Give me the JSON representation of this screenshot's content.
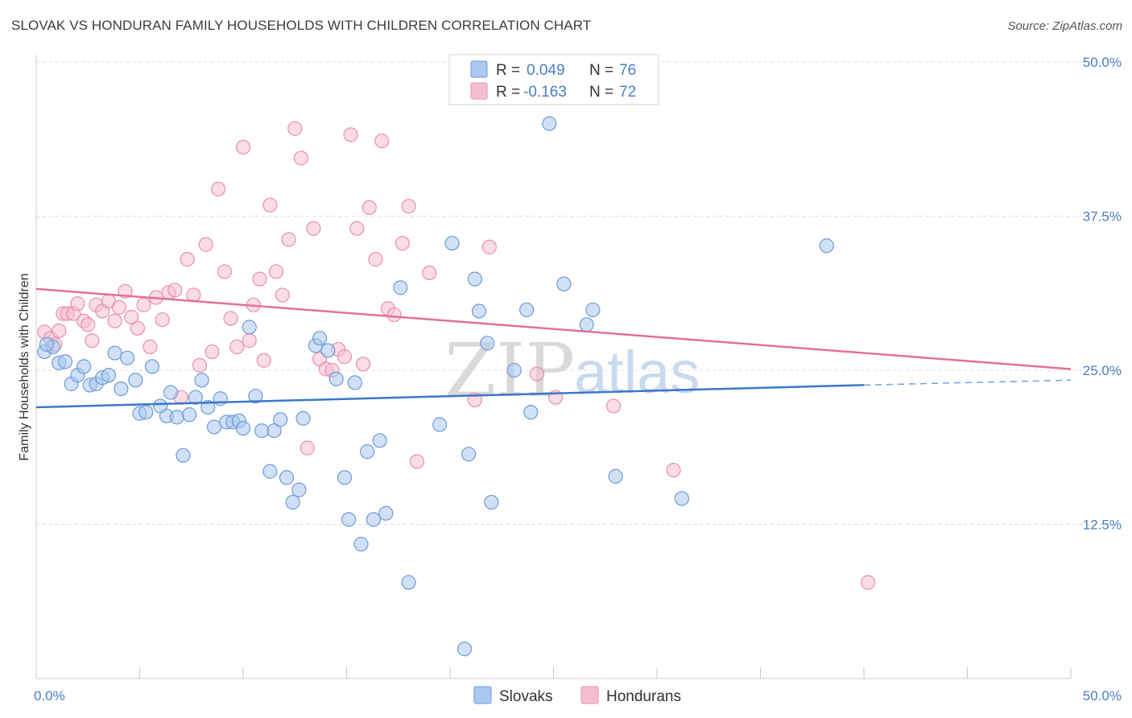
{
  "header": {
    "title": "SLOVAK VS HONDURAN FAMILY HOUSEHOLDS WITH CHILDREN CORRELATION CHART",
    "source": "Source: ZipAtlas.com"
  },
  "watermark": {
    "zip": "ZIP",
    "atlas": "atlas"
  },
  "legend_top": {
    "rows": [
      {
        "r_label": "R =",
        "r_value": "0.049",
        "n_label": "N =",
        "n_value": "76"
      },
      {
        "r_label": "R =",
        "r_value": "-0.163",
        "n_label": "N =",
        "n_value": "72"
      }
    ]
  },
  "legend_bottom": {
    "items": [
      "Slovaks",
      "Hondurans"
    ]
  },
  "colors": {
    "slovak_fill": "#aac8f0",
    "slovak_stroke": "#6f9ad6",
    "slovak_line": "#3a78c8",
    "honduran_fill": "#f6bfd0",
    "honduran_stroke": "#e98fae",
    "honduran_line": "#e2719a",
    "grid": "#dcdcdc",
    "tick_label": "#4a7cc7"
  },
  "chart_data": {
    "type": "scatter",
    "ylabel": "Family Households with Children",
    "xlim": [
      0,
      50
    ],
    "ylim": [
      0,
      50
    ],
    "x_tick_labels": [
      "0.0%",
      "50.0%"
    ],
    "y_ticks": [
      12.5,
      25.0,
      37.5,
      50.0
    ],
    "y_tick_labels": [
      "12.5%",
      "25.0%",
      "37.5%",
      "50.0%"
    ],
    "grid": true,
    "legend_placement": "top-center",
    "series": [
      {
        "name": "Slovaks",
        "points": [
          [
            0.4,
            26.5
          ],
          [
            0.8,
            26.9
          ],
          [
            1.1,
            25.6
          ],
          [
            1.4,
            25.7
          ],
          [
            1.7,
            23.9
          ],
          [
            2.0,
            24.6
          ],
          [
            2.3,
            25.3
          ],
          [
            2.6,
            23.8
          ],
          [
            2.9,
            23.9
          ],
          [
            3.2,
            24.4
          ],
          [
            3.5,
            24.6
          ],
          [
            3.8,
            26.4
          ],
          [
            4.1,
            23.5
          ],
          [
            4.4,
            26.0
          ],
          [
            4.8,
            24.2
          ],
          [
            5.0,
            21.5
          ],
          [
            5.3,
            21.6
          ],
          [
            5.6,
            25.3
          ],
          [
            6.0,
            22.1
          ],
          [
            6.3,
            21.3
          ],
          [
            6.5,
            23.2
          ],
          [
            6.8,
            21.2
          ],
          [
            7.1,
            18.1
          ],
          [
            7.4,
            21.4
          ],
          [
            7.7,
            22.8
          ],
          [
            8.0,
            24.2
          ],
          [
            8.3,
            22.0
          ],
          [
            8.6,
            20.4
          ],
          [
            8.9,
            22.7
          ],
          [
            9.2,
            20.8
          ],
          [
            9.5,
            20.8
          ],
          [
            9.8,
            20.9
          ],
          [
            10.0,
            20.3
          ],
          [
            10.3,
            28.5
          ],
          [
            10.6,
            22.9
          ],
          [
            10.9,
            20.1
          ],
          [
            11.3,
            16.8
          ],
          [
            11.5,
            20.1
          ],
          [
            11.8,
            21.0
          ],
          [
            12.1,
            16.3
          ],
          [
            12.4,
            14.3
          ],
          [
            12.7,
            15.3
          ],
          [
            12.9,
            21.1
          ],
          [
            13.5,
            27.0
          ],
          [
            13.7,
            27.6
          ],
          [
            14.1,
            26.6
          ],
          [
            14.5,
            24.3
          ],
          [
            14.9,
            16.3
          ],
          [
            15.1,
            12.9
          ],
          [
            15.4,
            24.0
          ],
          [
            15.7,
            10.9
          ],
          [
            16.0,
            18.4
          ],
          [
            16.3,
            12.9
          ],
          [
            16.6,
            19.3
          ],
          [
            16.9,
            13.4
          ],
          [
            17.6,
            31.7
          ],
          [
            18.0,
            7.8
          ],
          [
            19.5,
            20.6
          ],
          [
            20.1,
            35.3
          ],
          [
            20.7,
            2.4
          ],
          [
            20.9,
            18.2
          ],
          [
            21.2,
            32.4
          ],
          [
            21.4,
            29.8
          ],
          [
            21.8,
            27.2
          ],
          [
            22.0,
            14.3
          ],
          [
            23.1,
            25.0
          ],
          [
            23.7,
            29.9
          ],
          [
            23.9,
            21.6
          ],
          [
            24.8,
            45.0
          ],
          [
            25.5,
            32.0
          ],
          [
            26.6,
            28.7
          ],
          [
            26.9,
            29.9
          ],
          [
            28.0,
            16.4
          ],
          [
            31.2,
            14.6
          ],
          [
            38.2,
            35.1
          ],
          [
            0.5,
            27.1
          ]
        ],
        "trend": {
          "x": [
            0,
            40
          ],
          "y": [
            22.0,
            23.8
          ],
          "dashed_to": [
            50,
            24.2
          ]
        }
      },
      {
        "name": "Hondurans",
        "points": [
          [
            0.4,
            28.1
          ],
          [
            0.7,
            27.6
          ],
          [
            0.9,
            27.1
          ],
          [
            1.1,
            28.2
          ],
          [
            1.3,
            29.6
          ],
          [
            1.5,
            29.6
          ],
          [
            1.8,
            29.6
          ],
          [
            2.0,
            30.4
          ],
          [
            2.3,
            29.0
          ],
          [
            2.5,
            28.7
          ],
          [
            2.7,
            27.4
          ],
          [
            2.9,
            30.3
          ],
          [
            3.2,
            29.8
          ],
          [
            3.5,
            30.6
          ],
          [
            3.8,
            29.0
          ],
          [
            4.0,
            30.1
          ],
          [
            4.3,
            31.4
          ],
          [
            4.6,
            29.3
          ],
          [
            4.9,
            28.4
          ],
          [
            5.2,
            30.3
          ],
          [
            5.5,
            26.9
          ],
          [
            5.8,
            30.9
          ],
          [
            6.1,
            29.1
          ],
          [
            6.4,
            31.3
          ],
          [
            6.7,
            31.5
          ],
          [
            7.0,
            22.8
          ],
          [
            7.3,
            34.0
          ],
          [
            7.6,
            31.1
          ],
          [
            7.9,
            25.4
          ],
          [
            8.2,
            35.2
          ],
          [
            8.5,
            26.5
          ],
          [
            8.8,
            39.7
          ],
          [
            9.1,
            33.0
          ],
          [
            9.4,
            29.2
          ],
          [
            9.7,
            26.9
          ],
          [
            10.0,
            43.1
          ],
          [
            10.3,
            27.4
          ],
          [
            10.5,
            30.3
          ],
          [
            10.8,
            32.4
          ],
          [
            11.0,
            25.8
          ],
          [
            11.3,
            38.4
          ],
          [
            11.6,
            33.0
          ],
          [
            11.9,
            31.1
          ],
          [
            12.2,
            35.6
          ],
          [
            12.5,
            44.6
          ],
          [
            12.8,
            42.2
          ],
          [
            13.1,
            18.7
          ],
          [
            13.4,
            36.5
          ],
          [
            13.7,
            25.9
          ],
          [
            14.0,
            25.1
          ],
          [
            14.3,
            25.0
          ],
          [
            14.6,
            26.7
          ],
          [
            14.9,
            26.1
          ],
          [
            15.2,
            44.1
          ],
          [
            15.5,
            36.5
          ],
          [
            15.8,
            25.5
          ],
          [
            16.1,
            38.2
          ],
          [
            16.4,
            34.0
          ],
          [
            16.7,
            43.6
          ],
          [
            17.0,
            30.0
          ],
          [
            17.3,
            29.5
          ],
          [
            17.7,
            35.3
          ],
          [
            18.0,
            38.3
          ],
          [
            18.4,
            17.6
          ],
          [
            19.0,
            32.9
          ],
          [
            21.2,
            22.6
          ],
          [
            21.9,
            35.0
          ],
          [
            24.2,
            24.7
          ],
          [
            25.1,
            22.8
          ],
          [
            27.9,
            22.1
          ],
          [
            30.8,
            16.9
          ],
          [
            40.2,
            7.8
          ]
        ],
        "trend": {
          "x": [
            0,
            50
          ],
          "y": [
            31.6,
            25.1
          ]
        }
      }
    ]
  }
}
